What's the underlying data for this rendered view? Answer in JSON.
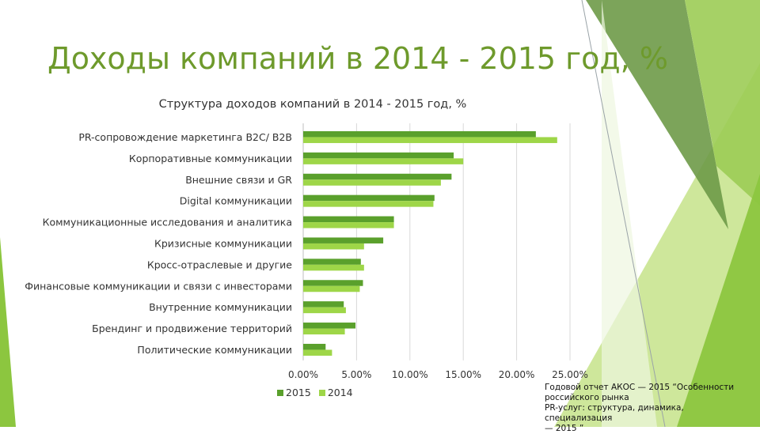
{
  "slide": {
    "title": "Доходы компаний в 2014 - 2015 год, %",
    "source_lines": [
      "Годовой отчет АКОС — 2015 “Особенности",
      "российского рынка",
      "PR-услуг: структура, динамика, специализация",
      "— 2015 ”"
    ]
  },
  "colors": {
    "series_2015": "#5aa02c",
    "series_2014": "#9ed648",
    "title": "#6e9a2c"
  },
  "chart_data": {
    "type": "bar",
    "orientation": "horizontal",
    "title": "Структура доходов компаний в 2014 - 2015 год, %",
    "categories": [
      "PR-сопровождение маркетинга B2C/ B2B",
      "Корпоративные коммуникации",
      "Внешние связи и GR",
      "Digital коммуникации",
      "Коммуникационные исследования и аналитика",
      "Кризисные коммуникации",
      "Кросс-отраслевые и другие",
      "Финансовые коммуникации и связи с инвесторами",
      "Внутренние коммуникации",
      "Брендинг и продвижение территорий",
      "Политические коммуникации"
    ],
    "series": [
      {
        "name": "2015",
        "values": [
          21.8,
          14.1,
          13.9,
          12.3,
          8.5,
          7.5,
          5.4,
          5.6,
          3.8,
          4.9,
          2.1
        ]
      },
      {
        "name": "2014",
        "values": [
          23.8,
          15.0,
          12.9,
          12.2,
          8.5,
          5.7,
          5.7,
          5.3,
          4.0,
          3.9,
          2.7
        ]
      }
    ],
    "xticks": [
      "0.00%",
      "5.00%",
      "10.00%",
      "15.00%",
      "20.00%",
      "25.00%"
    ],
    "xlim": [
      0,
      25
    ],
    "grid": true,
    "legend": "bottom"
  }
}
